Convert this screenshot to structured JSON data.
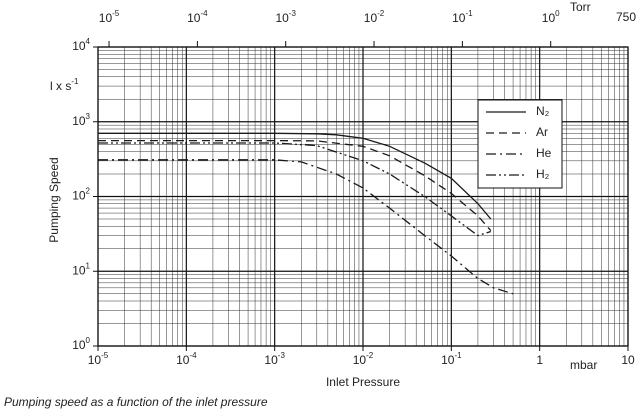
{
  "chart_data": {
    "type": "line",
    "y_label": "Pumping Speed",
    "y_unit": "l x s",
    "y_unit_exponent": "-1",
    "x_label": "Inlet Pressure",
    "x_unit": "mbar",
    "x2_unit": "Torr",
    "x2_end_label": "750",
    "caption": "Pumping speed as a function of the inlet pressure",
    "log_x": true,
    "log_y": true,
    "grid": true,
    "minor_grid": true,
    "legend": "upper right",
    "xlim": [
      1e-05,
      10
    ],
    "xticks": [
      {
        "value": 1e-05,
        "label": "10",
        "exponent": "-5"
      },
      {
        "value": 0.0001,
        "label": "10",
        "exponent": "-4"
      },
      {
        "value": 0.001,
        "label": "10",
        "exponent": "-3"
      },
      {
        "value": 0.01,
        "label": "10",
        "exponent": "-2"
      },
      {
        "value": 0.1,
        "label": "10",
        "exponent": "-1"
      },
      1,
      10
    ],
    "x2lim": [
      7.5e-06,
      7.5
    ],
    "x2ticks": [
      {
        "value": 1e-05,
        "label": "10",
        "exponent": "-5"
      },
      {
        "value": 0.0001,
        "label": "10",
        "exponent": "-4"
      },
      {
        "value": 0.001,
        "label": "10",
        "exponent": "-3"
      },
      {
        "value": 0.01,
        "label": "10",
        "exponent": "-2"
      },
      {
        "value": 0.1,
        "label": "10",
        "exponent": "-1"
      },
      {
        "value": 1,
        "label": "10",
        "exponent": "0"
      }
    ],
    "ylim": [
      1,
      10000
    ],
    "yticks": [
      {
        "value": 1,
        "label": "10",
        "exponent": "0"
      },
      {
        "value": 10,
        "label": "10",
        "exponent": "1"
      },
      {
        "value": 100,
        "label": "10",
        "exponent": "2"
      },
      {
        "value": 1000,
        "label": "10",
        "exponent": "3"
      },
      {
        "value": 10000,
        "label": "10",
        "exponent": "4"
      }
    ],
    "series": [
      {
        "name": "N₂",
        "color": "#1a1a1a",
        "dash": "none",
        "x": [
          1e-05,
          0.001,
          0.003,
          0.005,
          0.01,
          0.02,
          0.05,
          0.1,
          0.2,
          0.28
        ],
        "values": [
          700,
          700,
          690,
          670,
          600,
          470,
          280,
          175,
          80,
          50
        ]
      },
      {
        "name": "Ar",
        "color": "#1a1a1a",
        "dash": "8,5",
        "x": [
          1e-05,
          0.001,
          0.003,
          0.01,
          0.02,
          0.05,
          0.1,
          0.2,
          0.28
        ],
        "values": [
          560,
          560,
          555,
          470,
          350,
          190,
          110,
          55,
          35
        ]
      },
      {
        "name": "He",
        "color": "#1a1a1a",
        "dash": "10,4,2,4",
        "x": [
          1e-05,
          0.001,
          0.002,
          0.005,
          0.01,
          0.02,
          0.05,
          0.1,
          0.2,
          0.3,
          0.5
        ],
        "values": [
          310,
          310,
          290,
          200,
          130,
          70,
          30,
          16,
          8,
          6,
          5
        ]
      },
      {
        "name": "H₂",
        "color": "#1a1a1a",
        "dash": "10,3,2,3,2,3",
        "x": [
          1e-05,
          0.001,
          0.003,
          0.01,
          0.02,
          0.05,
          0.1,
          0.2,
          0.28
        ],
        "values": [
          520,
          520,
          480,
          300,
          200,
          100,
          55,
          30,
          34
        ]
      }
    ]
  }
}
